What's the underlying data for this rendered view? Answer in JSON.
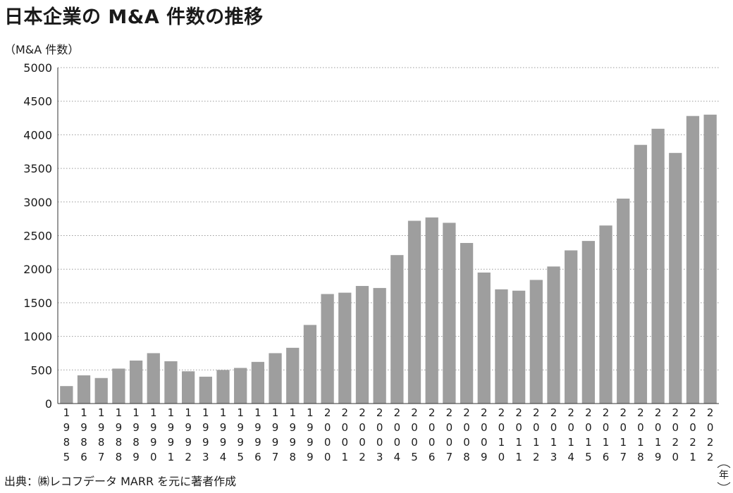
{
  "chart_data": {
    "type": "bar",
    "title": "日本企業の M&A 件数の推移",
    "ylabel": "（M&A 件数）",
    "xlabel": "年",
    "source": "出典：㈱レコフデータ MARR を元に著者作成",
    "categories": [
      "1985",
      "1986",
      "1987",
      "1988",
      "1989",
      "1990",
      "1991",
      "1992",
      "1993",
      "1994",
      "1995",
      "1996",
      "1997",
      "1998",
      "1999",
      "2000",
      "2001",
      "2002",
      "2003",
      "2004",
      "2005",
      "2006",
      "2007",
      "2008",
      "2009",
      "2010",
      "2011",
      "2012",
      "2013",
      "2014",
      "2015",
      "2016",
      "2017",
      "2018",
      "2019",
      "2020",
      "2021",
      "2022"
    ],
    "values": [
      260,
      420,
      380,
      520,
      640,
      750,
      630,
      480,
      400,
      500,
      530,
      620,
      750,
      830,
      1170,
      1630,
      1650,
      1750,
      1720,
      2210,
      2720,
      2770,
      2690,
      2390,
      1950,
      1700,
      1680,
      1840,
      2040,
      2280,
      2420,
      2650,
      3050,
      3850,
      4090,
      3730,
      4280,
      4300
    ],
    "ylim": [
      0,
      5000
    ],
    "yticks": [
      0,
      500,
      1000,
      1500,
      2000,
      2500,
      3000,
      3500,
      4000,
      4500,
      5000
    ],
    "grid": true,
    "bar_color": "#9e9e9e"
  }
}
